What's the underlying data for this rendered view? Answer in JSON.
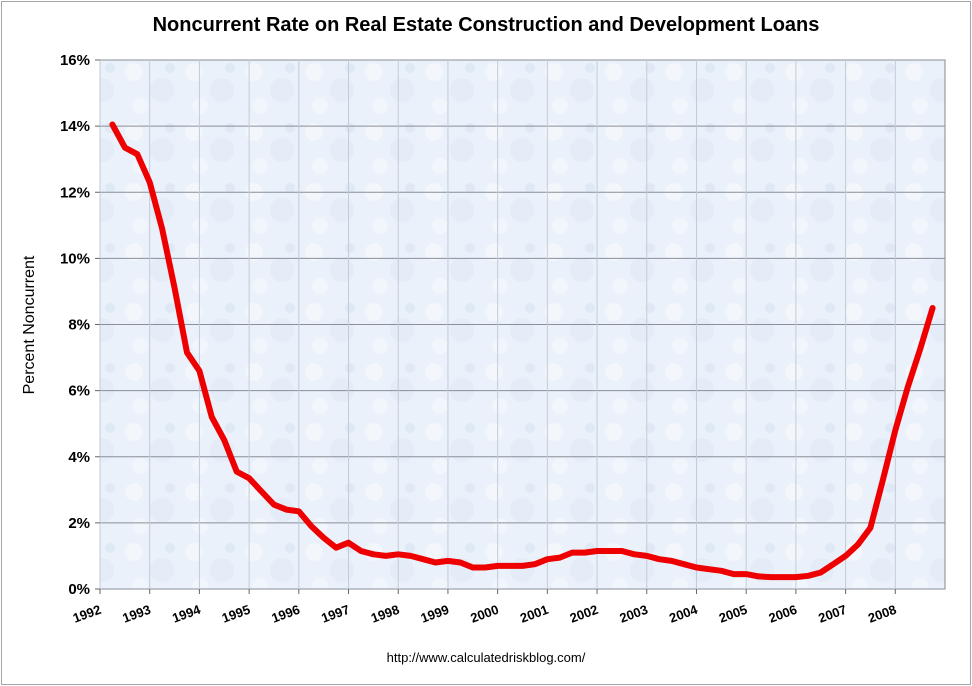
{
  "chart_data": {
    "type": "line",
    "title": "Noncurrent Rate on Real Estate Construction and Development Loans",
    "xlabel": "",
    "ylabel": "Percent Noncurrent",
    "source": "http://www.calculatedriskblog.com/",
    "xlim": [
      1992,
      2009
    ],
    "ylim": [
      0,
      16
    ],
    "y_ticks": [
      0,
      2,
      4,
      6,
      8,
      10,
      12,
      14,
      16
    ],
    "y_tick_labels": [
      "0%",
      "2%",
      "4%",
      "6%",
      "8%",
      "10%",
      "12%",
      "14%",
      "16%"
    ],
    "x_ticks": [
      1992,
      1993,
      1994,
      1995,
      1996,
      1997,
      1998,
      1999,
      2000,
      2001,
      2002,
      2003,
      2004,
      2005,
      2006,
      2007,
      2008
    ],
    "x_tick_labels": [
      "1992",
      "1993",
      "1994",
      "1995",
      "1996",
      "1997",
      "1998",
      "1999",
      "2000",
      "2001",
      "2002",
      "2003",
      "2004",
      "2005",
      "2006",
      "2007",
      "2008"
    ],
    "grid": true,
    "series": [
      {
        "name": "Noncurrent Rate",
        "color": "#ee0000",
        "x": [
          1992.25,
          1992.5,
          1992.75,
          1993.0,
          1993.25,
          1993.5,
          1993.75,
          1994.0,
          1994.25,
          1994.5,
          1994.75,
          1995.0,
          1995.25,
          1995.5,
          1995.75,
          1996.0,
          1996.25,
          1996.5,
          1996.75,
          1997.0,
          1997.25,
          1997.5,
          1997.75,
          1998.0,
          1998.25,
          1998.5,
          1998.75,
          1999.0,
          1999.25,
          1999.5,
          1999.75,
          2000.0,
          2000.25,
          2000.5,
          2000.75,
          2001.0,
          2001.25,
          2001.5,
          2001.75,
          2002.0,
          2002.25,
          2002.5,
          2002.75,
          2003.0,
          2003.25,
          2003.5,
          2003.75,
          2004.0,
          2004.25,
          2004.5,
          2004.75,
          2005.0,
          2005.25,
          2005.5,
          2005.75,
          2006.0,
          2006.25,
          2006.5,
          2006.75,
          2007.0,
          2007.25,
          2007.5,
          2007.75,
          2008.0,
          2008.25,
          2008.5,
          2008.75
        ],
        "values": [
          14.05,
          13.35,
          13.15,
          12.3,
          10.9,
          9.1,
          7.15,
          6.6,
          5.2,
          4.5,
          3.55,
          3.35,
          2.95,
          2.55,
          2.4,
          2.35,
          1.9,
          1.55,
          1.25,
          1.4,
          1.15,
          1.05,
          1.0,
          1.05,
          1.0,
          0.9,
          0.8,
          0.85,
          0.8,
          0.65,
          0.65,
          0.7,
          0.7,
          0.7,
          0.75,
          0.9,
          0.95,
          1.1,
          1.1,
          1.15,
          1.15,
          1.15,
          1.05,
          1.0,
          0.9,
          0.85,
          0.75,
          0.65,
          0.6,
          0.55,
          0.45,
          0.45,
          0.38,
          0.36,
          0.36,
          0.36,
          0.4,
          0.5,
          0.75,
          1.0,
          1.35,
          1.85,
          3.3,
          4.8,
          6.1,
          7.25,
          8.5
        ]
      }
    ]
  }
}
